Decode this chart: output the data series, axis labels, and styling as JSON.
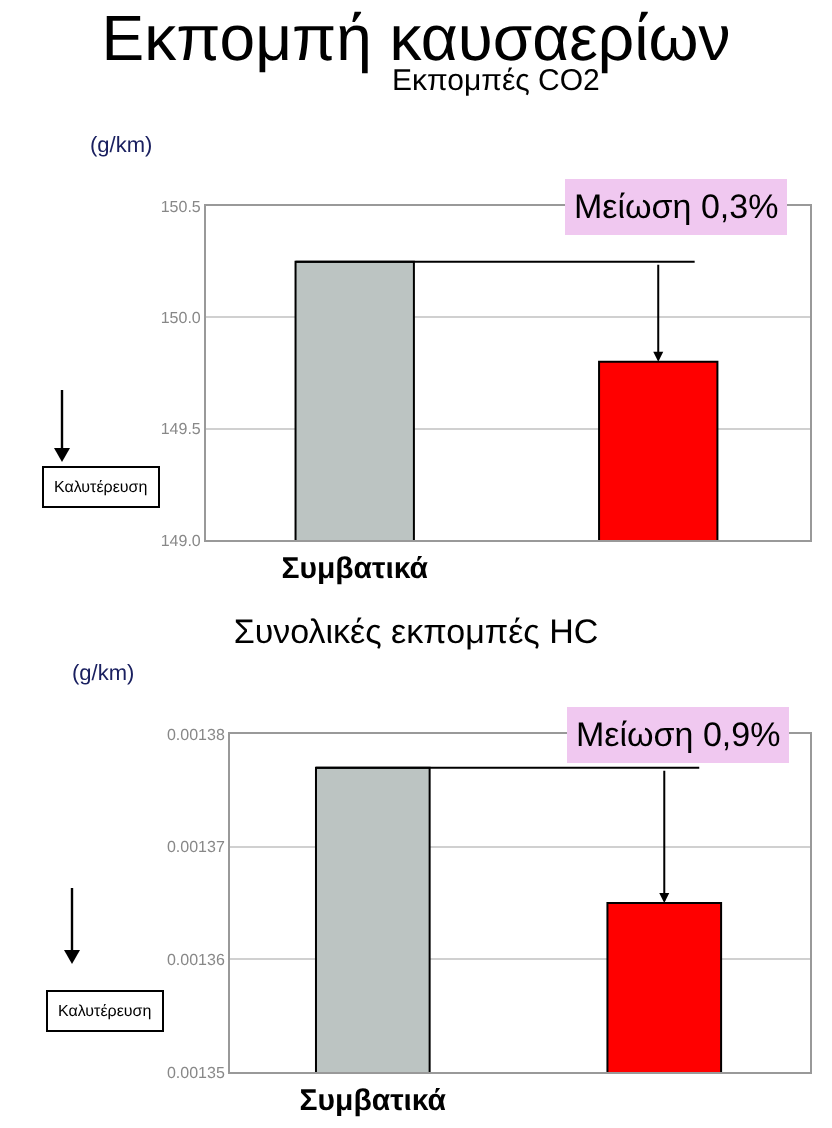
{
  "chart_data": [
    {
      "type": "bar",
      "title": "Εκπομπή καυσαερίων",
      "subtitle": "Εκπομπές CO2",
      "ylabel": "(g/km)",
      "categories": [
        "Συμβατικά",
        null
      ],
      "values": [
        150.25,
        149.8
      ],
      "colors": [
        "#bcc4c2",
        "#ff0000"
      ],
      "ylim": [
        149.0,
        150.5
      ],
      "yticks": [
        {
          "value": 149.0,
          "label": "149.0"
        },
        {
          "value": 149.5,
          "label": "149.5"
        },
        {
          "value": 150.0,
          "label": "150.0"
        },
        {
          "value": 150.5,
          "label": "150.5"
        }
      ],
      "grid": "y",
      "annotations": [
        "Μείωση 0,3%",
        "Καλυτέρευση"
      ]
    },
    {
      "type": "bar",
      "title": "Συνολικές εκπομπές HC",
      "ylabel": "(g/km)",
      "categories": [
        "Συμβατικά",
        null
      ],
      "values": [
        0.001377,
        0.001365
      ],
      "colors": [
        "#bcc4c2",
        "#ff0000"
      ],
      "ylim": [
        0.00135,
        0.00138
      ],
      "yticks": [
        0.00135,
        0.00136,
        0.00137,
        0.00138
      ],
      "grid": "y",
      "annotations": [
        "Μείωση 0,9%",
        "Καλυτέρευση"
      ]
    }
  ]
}
